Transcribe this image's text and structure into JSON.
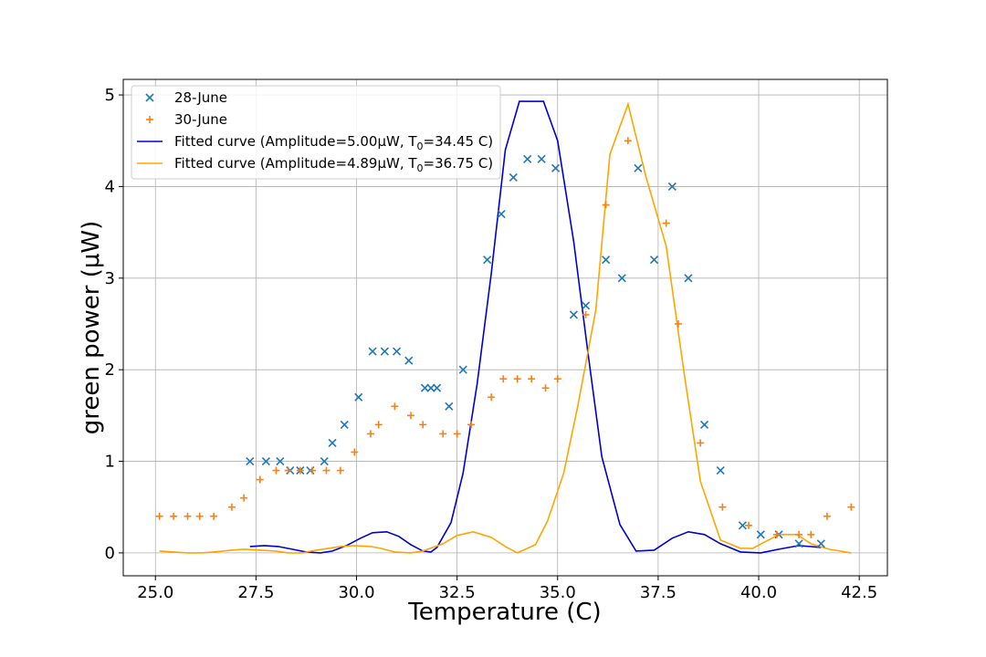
{
  "chart_data": {
    "type": "scatter",
    "title": "",
    "xlabel": "Temperature (C)",
    "ylabel": "green power (μW)",
    "xlim": [
      24.2,
      43.2
    ],
    "ylim": [
      -0.25,
      5.17
    ],
    "grid": true,
    "legend_position": "top-left",
    "x_ticks": [
      25.0,
      27.5,
      30.0,
      32.5,
      35.0,
      37.5,
      40.0,
      42.5
    ],
    "x_tick_labels": [
      "25.0",
      "27.5",
      "30.0",
      "32.5",
      "35.0",
      "37.5",
      "40.0",
      "42.5"
    ],
    "y_ticks": [
      0,
      1,
      2,
      3,
      4,
      5
    ],
    "y_tick_labels": [
      "0",
      "1",
      "2",
      "3",
      "4",
      "5"
    ],
    "series": [
      {
        "name": "28-June",
        "kind": "scatter",
        "marker": "x",
        "color": "#1f77b4",
        "points": [
          [
            27.35,
            1.0
          ],
          [
            27.75,
            1.0
          ],
          [
            28.1,
            1.0
          ],
          [
            28.35,
            0.9
          ],
          [
            28.6,
            0.9
          ],
          [
            28.85,
            0.9
          ],
          [
            29.2,
            1.0
          ],
          [
            29.4,
            1.2
          ],
          [
            29.7,
            1.4
          ],
          [
            30.05,
            1.7
          ],
          [
            30.4,
            2.2
          ],
          [
            30.7,
            2.2
          ],
          [
            31.0,
            2.2
          ],
          [
            31.3,
            2.1
          ],
          [
            31.7,
            1.8
          ],
          [
            31.85,
            1.8
          ],
          [
            32.0,
            1.8
          ],
          [
            32.3,
            1.6
          ],
          [
            32.65,
            2.0
          ],
          [
            33.25,
            3.2
          ],
          [
            33.6,
            3.7
          ],
          [
            33.9,
            4.1
          ],
          [
            34.25,
            4.3
          ],
          [
            34.6,
            4.3
          ],
          [
            34.95,
            4.2
          ],
          [
            35.4,
            2.6
          ],
          [
            35.7,
            2.7
          ],
          [
            36.2,
            3.2
          ],
          [
            36.6,
            3.0
          ],
          [
            37.0,
            4.2
          ],
          [
            37.4,
            3.2
          ],
          [
            37.85,
            4.0
          ],
          [
            38.25,
            3.0
          ],
          [
            38.65,
            1.4
          ],
          [
            39.05,
            0.9
          ],
          [
            39.6,
            0.3
          ],
          [
            40.05,
            0.2
          ],
          [
            40.5,
            0.2
          ],
          [
            41.0,
            0.1
          ],
          [
            41.55,
            0.1
          ]
        ]
      },
      {
        "name": "30-June",
        "kind": "scatter",
        "marker": "+",
        "color": "#ff7f0e",
        "points": [
          [
            25.1,
            0.4
          ],
          [
            25.45,
            0.4
          ],
          [
            25.8,
            0.4
          ],
          [
            26.1,
            0.4
          ],
          [
            26.45,
            0.4
          ],
          [
            26.9,
            0.5
          ],
          [
            27.2,
            0.6
          ],
          [
            27.6,
            0.8
          ],
          [
            28.0,
            0.9
          ],
          [
            28.3,
            0.9
          ],
          [
            28.6,
            0.9
          ],
          [
            28.9,
            0.9
          ],
          [
            29.25,
            0.9
          ],
          [
            29.6,
            0.9
          ],
          [
            29.95,
            1.1
          ],
          [
            30.35,
            1.3
          ],
          [
            30.55,
            1.4
          ],
          [
            30.95,
            1.6
          ],
          [
            31.35,
            1.5
          ],
          [
            31.65,
            1.4
          ],
          [
            32.15,
            1.3
          ],
          [
            32.5,
            1.3
          ],
          [
            32.85,
            1.4
          ],
          [
            33.35,
            1.7
          ],
          [
            33.65,
            1.9
          ],
          [
            34.0,
            1.9
          ],
          [
            34.35,
            1.9
          ],
          [
            34.7,
            1.8
          ],
          [
            35.0,
            1.9
          ],
          [
            35.7,
            2.6
          ],
          [
            36.2,
            3.8
          ],
          [
            36.75,
            4.5
          ],
          [
            37.7,
            3.6
          ],
          [
            38.0,
            2.5
          ],
          [
            38.55,
            1.2
          ],
          [
            39.1,
            0.5
          ],
          [
            39.75,
            0.3
          ],
          [
            40.45,
            0.2
          ],
          [
            41.0,
            0.2
          ],
          [
            41.3,
            0.2
          ],
          [
            41.7,
            0.4
          ],
          [
            42.3,
            0.5
          ]
        ]
      },
      {
        "name": "Fitted curve (Amplitude=5.00μW, T",
        "name_subscript": "0",
        "name_rest": "=34.45 C)",
        "kind": "line",
        "color": "#0000cd",
        "points": [
          [
            27.35,
            0.07
          ],
          [
            27.7,
            0.08
          ],
          [
            28.05,
            0.07
          ],
          [
            28.4,
            0.04
          ],
          [
            28.75,
            0.01
          ],
          [
            29.1,
            0.0
          ],
          [
            29.4,
            0.02
          ],
          [
            29.75,
            0.08
          ],
          [
            30.1,
            0.16
          ],
          [
            30.4,
            0.22
          ],
          [
            30.75,
            0.23
          ],
          [
            31.05,
            0.18
          ],
          [
            31.35,
            0.09
          ],
          [
            31.65,
            0.02
          ],
          [
            31.85,
            0.01
          ],
          [
            32.0,
            0.06
          ],
          [
            32.35,
            0.33
          ],
          [
            32.65,
            0.87
          ],
          [
            33.0,
            1.85
          ],
          [
            33.35,
            3.05
          ],
          [
            33.7,
            4.4
          ],
          [
            34.05,
            4.93
          ],
          [
            34.35,
            4.93
          ],
          [
            34.65,
            4.93
          ],
          [
            35.0,
            4.5
          ],
          [
            35.4,
            3.4
          ],
          [
            35.75,
            2.2
          ],
          [
            36.1,
            1.05
          ],
          [
            36.55,
            0.31
          ],
          [
            36.95,
            0.02
          ],
          [
            37.4,
            0.03
          ],
          [
            37.85,
            0.16
          ],
          [
            38.25,
            0.23
          ],
          [
            38.65,
            0.2
          ],
          [
            39.05,
            0.1
          ],
          [
            39.55,
            0.01
          ],
          [
            40.05,
            0.0
          ],
          [
            40.5,
            0.04
          ],
          [
            41.0,
            0.08
          ],
          [
            41.55,
            0.06
          ]
        ]
      },
      {
        "name": "Fitted curve (Amplitude=4.89μW, T",
        "name_subscript": "0",
        "name_rest": "=36.75 C)",
        "kind": "line",
        "color": "#ffa500",
        "points": [
          [
            25.1,
            0.02
          ],
          [
            25.45,
            0.01
          ],
          [
            25.8,
            0.0
          ],
          [
            26.15,
            0.0
          ],
          [
            26.45,
            0.01
          ],
          [
            26.9,
            0.03
          ],
          [
            27.2,
            0.04
          ],
          [
            27.6,
            0.03
          ],
          [
            28.0,
            0.02
          ],
          [
            28.3,
            0.0
          ],
          [
            28.65,
            0.0
          ],
          [
            29.0,
            0.03
          ],
          [
            29.3,
            0.05
          ],
          [
            29.6,
            0.07
          ],
          [
            29.95,
            0.08
          ],
          [
            30.35,
            0.07
          ],
          [
            30.6,
            0.05
          ],
          [
            30.95,
            0.01
          ],
          [
            31.35,
            0.0
          ],
          [
            31.65,
            0.02
          ],
          [
            32.15,
            0.1
          ],
          [
            32.5,
            0.19
          ],
          [
            32.9,
            0.23
          ],
          [
            33.35,
            0.17
          ],
          [
            33.7,
            0.07
          ],
          [
            34.0,
            0.0
          ],
          [
            34.45,
            0.09
          ],
          [
            34.75,
            0.35
          ],
          [
            35.15,
            0.87
          ],
          [
            35.5,
            1.6
          ],
          [
            35.95,
            2.65
          ],
          [
            36.3,
            4.35
          ],
          [
            36.75,
            4.9
          ],
          [
            37.2,
            4.1
          ],
          [
            37.7,
            3.35
          ],
          [
            38.15,
            1.95
          ],
          [
            38.55,
            0.78
          ],
          [
            39.05,
            0.14
          ],
          [
            39.55,
            0.05
          ],
          [
            39.85,
            0.05
          ],
          [
            40.5,
            0.2
          ],
          [
            40.95,
            0.2
          ],
          [
            41.3,
            0.1
          ],
          [
            41.75,
            0.04
          ],
          [
            42.3,
            0.0
          ]
        ]
      }
    ]
  }
}
